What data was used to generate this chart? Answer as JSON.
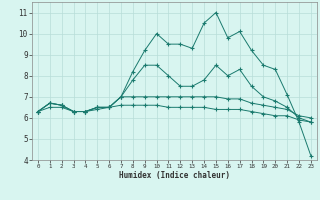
{
  "xlabel": "Humidex (Indice chaleur)",
  "x_values": [
    0,
    1,
    2,
    3,
    4,
    5,
    6,
    7,
    8,
    9,
    10,
    11,
    12,
    13,
    14,
    15,
    16,
    17,
    18,
    19,
    20,
    21,
    22,
    23
  ],
  "series": [
    [
      6.3,
      6.7,
      6.6,
      6.3,
      6.3,
      6.5,
      6.5,
      7.0,
      8.2,
      9.2,
      10.0,
      9.5,
      9.5,
      9.3,
      10.5,
      11.0,
      9.8,
      10.1,
      9.2,
      8.5,
      8.3,
      7.1,
      5.8,
      4.2
    ],
    [
      6.3,
      6.7,
      6.6,
      6.3,
      6.3,
      6.5,
      6.5,
      7.0,
      7.8,
      8.5,
      8.5,
      8.0,
      7.5,
      7.5,
      7.8,
      8.5,
      8.0,
      8.3,
      7.5,
      7.0,
      6.8,
      6.5,
      6.0,
      5.8
    ],
    [
      6.3,
      6.7,
      6.6,
      6.3,
      6.3,
      6.5,
      6.5,
      7.0,
      7.0,
      7.0,
      7.0,
      7.0,
      7.0,
      7.0,
      7.0,
      7.0,
      6.9,
      6.9,
      6.7,
      6.6,
      6.5,
      6.4,
      6.1,
      6.0
    ],
    [
      6.3,
      6.5,
      6.5,
      6.3,
      6.3,
      6.4,
      6.5,
      6.6,
      6.6,
      6.6,
      6.6,
      6.5,
      6.5,
      6.5,
      6.5,
      6.4,
      6.4,
      6.4,
      6.3,
      6.2,
      6.1,
      6.1,
      5.9,
      5.8
    ]
  ],
  "line_color": "#1a7a6e",
  "bg_color": "#d8f5f0",
  "grid_color": "#b8ddd8",
  "ylim": [
    4,
    11.5
  ],
  "xlim": [
    -0.5,
    23.5
  ],
  "yticks": [
    4,
    5,
    6,
    7,
    8,
    9,
    10,
    11
  ],
  "xticks": [
    0,
    1,
    2,
    3,
    4,
    5,
    6,
    7,
    8,
    9,
    10,
    11,
    12,
    13,
    14,
    15,
    16,
    17,
    18,
    19,
    20,
    21,
    22,
    23
  ]
}
